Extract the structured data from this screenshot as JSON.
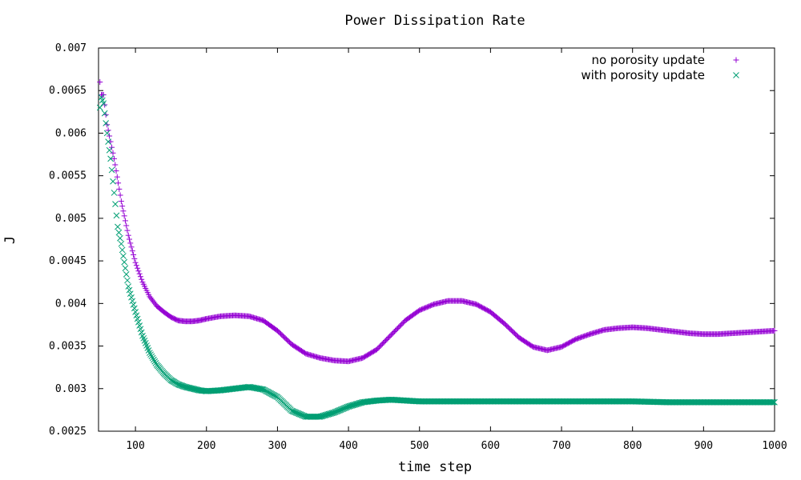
{
  "chart_data": {
    "type": "scatter",
    "title": "Power Dissipation Rate",
    "xlabel": "time step",
    "ylabel": "J",
    "xlim": [
      48,
      1000
    ],
    "ylim": [
      0.0025,
      0.007
    ],
    "x_ticks": [
      "100",
      "200",
      "300",
      "400",
      "500",
      "600",
      "700",
      "800",
      "900",
      "1000"
    ],
    "y_ticks": [
      "0.0025",
      "0.003",
      "0.0035",
      "0.004",
      "0.0045",
      "0.005",
      "0.0055",
      "0.006",
      "0.0065",
      "0.007"
    ],
    "grid": false,
    "legend_position": "top-right",
    "series": [
      {
        "name": "no porosity update",
        "marker": "plus",
        "color": "#9400d3",
        "points": [
          [
            50,
            0.0066
          ],
          [
            52,
            0.00645
          ],
          [
            55,
            0.00645
          ],
          [
            60,
            0.0061
          ],
          [
            65,
            0.0059
          ],
          [
            70,
            0.0057
          ],
          [
            80,
            0.0052
          ],
          [
            90,
            0.0048
          ],
          [
            100,
            0.00448
          ],
          [
            110,
            0.00425
          ],
          [
            120,
            0.00408
          ],
          [
            130,
            0.00397
          ],
          [
            140,
            0.0039
          ],
          [
            150,
            0.00384
          ],
          [
            160,
            0.0038
          ],
          [
            170,
            0.00379
          ],
          [
            180,
            0.00379
          ],
          [
            190,
            0.0038
          ],
          [
            200,
            0.00382
          ],
          [
            220,
            0.00385
          ],
          [
            240,
            0.00386
          ],
          [
            260,
            0.00385
          ],
          [
            280,
            0.0038
          ],
          [
            300,
            0.00368
          ],
          [
            320,
            0.00352
          ],
          [
            340,
            0.00341
          ],
          [
            360,
            0.00336
          ],
          [
            380,
            0.00333
          ],
          [
            400,
            0.00332
          ],
          [
            420,
            0.00336
          ],
          [
            440,
            0.00346
          ],
          [
            460,
            0.00363
          ],
          [
            480,
            0.0038
          ],
          [
            500,
            0.00392
          ],
          [
            520,
            0.00399
          ],
          [
            540,
            0.00403
          ],
          [
            560,
            0.00403
          ],
          [
            580,
            0.00399
          ],
          [
            600,
            0.0039
          ],
          [
            620,
            0.00376
          ],
          [
            640,
            0.0036
          ],
          [
            660,
            0.00349
          ],
          [
            680,
            0.00345
          ],
          [
            700,
            0.00349
          ],
          [
            720,
            0.00358
          ],
          [
            740,
            0.00364
          ],
          [
            760,
            0.00369
          ],
          [
            780,
            0.00371
          ],
          [
            800,
            0.00372
          ],
          [
            820,
            0.00371
          ],
          [
            840,
            0.00369
          ],
          [
            860,
            0.00367
          ],
          [
            880,
            0.00365
          ],
          [
            900,
            0.00364
          ],
          [
            920,
            0.00364
          ],
          [
            940,
            0.00365
          ],
          [
            960,
            0.00366
          ],
          [
            980,
            0.00367
          ],
          [
            1000,
            0.00368
          ]
        ]
      },
      {
        "name": "with porosity update",
        "marker": "cross",
        "color": "#009e73",
        "points": [
          [
            50,
            0.0063
          ],
          [
            52,
            0.00642
          ],
          [
            55,
            0.00635
          ],
          [
            60,
            0.006
          ],
          [
            65,
            0.0057
          ],
          [
            70,
            0.0053
          ],
          [
            75,
            0.0049
          ],
          [
            80,
            0.0047
          ],
          [
            90,
            0.0042
          ],
          [
            100,
            0.0039
          ],
          [
            110,
            0.00362
          ],
          [
            120,
            0.00342
          ],
          [
            130,
            0.00328
          ],
          [
            140,
            0.00318
          ],
          [
            150,
            0.0031
          ],
          [
            160,
            0.00305
          ],
          [
            170,
            0.00302
          ],
          [
            180,
            0.003
          ],
          [
            190,
            0.00298
          ],
          [
            200,
            0.00297
          ],
          [
            220,
            0.00298
          ],
          [
            240,
            0.003
          ],
          [
            260,
            0.00302
          ],
          [
            280,
            0.00299
          ],
          [
            300,
            0.0029
          ],
          [
            320,
            0.00274
          ],
          [
            340,
            0.00267
          ],
          [
            360,
            0.00267
          ],
          [
            380,
            0.00272
          ],
          [
            400,
            0.00279
          ],
          [
            420,
            0.00284
          ],
          [
            440,
            0.00286
          ],
          [
            460,
            0.00287
          ],
          [
            480,
            0.00286
          ],
          [
            500,
            0.00285
          ],
          [
            550,
            0.00285
          ],
          [
            600,
            0.00285
          ],
          [
            650,
            0.00285
          ],
          [
            700,
            0.00285
          ],
          [
            750,
            0.00285
          ],
          [
            800,
            0.00285
          ],
          [
            850,
            0.00284
          ],
          [
            900,
            0.00284
          ],
          [
            950,
            0.00284
          ],
          [
            1000,
            0.00284
          ]
        ]
      }
    ]
  }
}
